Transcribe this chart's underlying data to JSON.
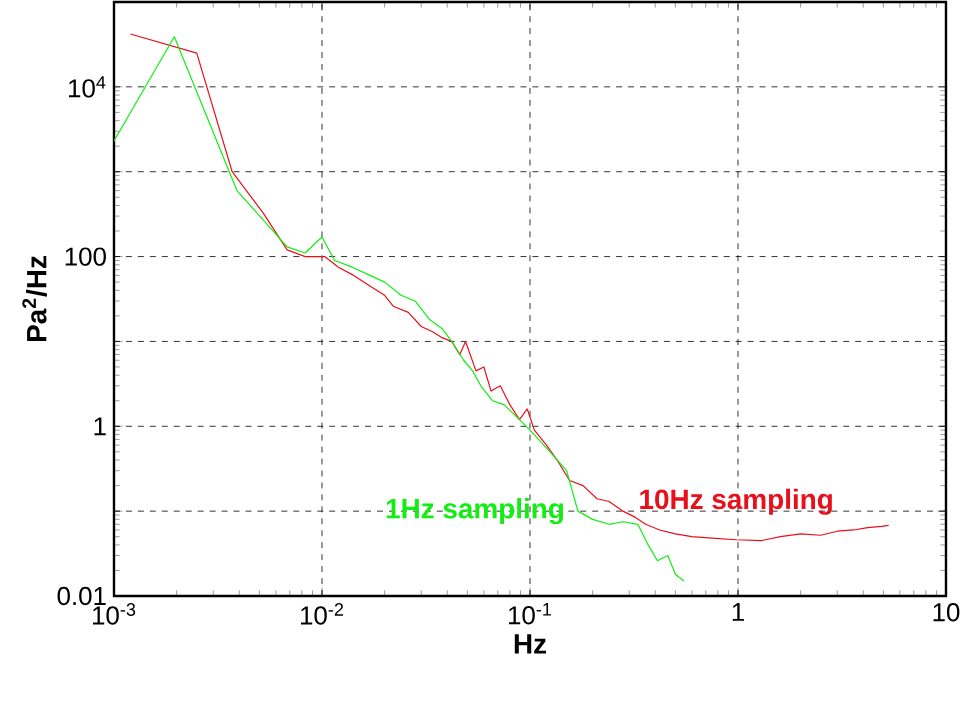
{
  "chart_data": {
    "type": "line",
    "xlabel": "Hz",
    "ylabel": "Pa$^{2}$/Hz",
    "log": "xy",
    "grid": true,
    "marker": "none",
    "xlim": [
      0.001,
      10
    ],
    "ylim": [
      0.01,
      100000
    ],
    "xticks": [
      {
        "value": 0.001,
        "label": "10$^{-3}$"
      },
      {
        "value": 0.01,
        "label": "10$^{-2}$"
      },
      {
        "value": 0.1,
        "label": "10$^{-1}$"
      },
      1,
      10
    ],
    "yticks": [
      0.01,
      {
        "value": 0.1,
        "label": null
      },
      1,
      {
        "value": 10,
        "label": null
      },
      100,
      {
        "value": 1000,
        "label": null
      },
      {
        "value": 10000,
        "label": "10$^{4}$"
      }
    ],
    "series": [
      {
        "name": "10Hz sampling",
        "color": "#e8101a",
        "x": [
          0.0012,
          0.0025,
          0.0037,
          0.0052,
          0.0068,
          0.0083,
          0.0103,
          0.012,
          0.0142,
          0.017,
          0.02,
          0.022,
          0.026,
          0.03,
          0.034,
          0.038,
          0.042,
          0.046,
          0.049,
          0.055,
          0.06,
          0.065,
          0.072,
          0.08,
          0.089,
          0.097,
          0.105,
          0.12,
          0.135,
          0.155,
          0.18,
          0.21,
          0.24,
          0.28,
          0.32,
          0.36,
          0.42,
          0.5,
          0.6,
          0.75,
          0.98,
          1.3,
          1.6,
          2.0,
          2.5,
          3.0,
          3.6,
          4.2,
          4.9,
          5.3
        ],
        "values": [
          42000,
          25000,
          1000,
          330,
          120,
          100,
          100,
          75,
          60,
          45,
          35,
          26,
          22,
          15,
          13,
          11,
          10,
          7,
          10,
          4.5,
          5,
          2.6,
          3,
          1.8,
          1.2,
          1.6,
          0.9,
          0.6,
          0.4,
          0.23,
          0.2,
          0.14,
          0.13,
          0.1,
          0.085,
          0.07,
          0.06,
          0.054,
          0.05,
          0.048,
          0.046,
          0.045,
          0.05,
          0.054,
          0.052,
          0.058,
          0.06,
          0.064,
          0.066,
          0.068
        ]
      },
      {
        "name": "1Hz sampling",
        "color": "#11ee11",
        "x": [
          0.001,
          0.00195,
          0.0039,
          0.0068,
          0.0083,
          0.01,
          0.0115,
          0.014,
          0.017,
          0.02,
          0.024,
          0.028,
          0.033,
          0.038,
          0.042,
          0.048,
          0.053,
          0.058,
          0.066,
          0.075,
          0.089,
          0.1,
          0.123,
          0.15,
          0.17,
          0.2,
          0.24,
          0.28,
          0.33,
          0.37,
          0.41,
          0.46,
          0.5,
          0.55
        ],
        "values": [
          2300,
          39000,
          600,
          130,
          110,
          170,
          90,
          75,
          60,
          50,
          35,
          30,
          18,
          14,
          10,
          6,
          4.5,
          3,
          2,
          1.8,
          1.2,
          0.9,
          0.52,
          0.3,
          0.1,
          0.08,
          0.07,
          0.075,
          0.07,
          0.04,
          0.026,
          0.03,
          0.018,
          0.015
        ]
      }
    ]
  }
}
